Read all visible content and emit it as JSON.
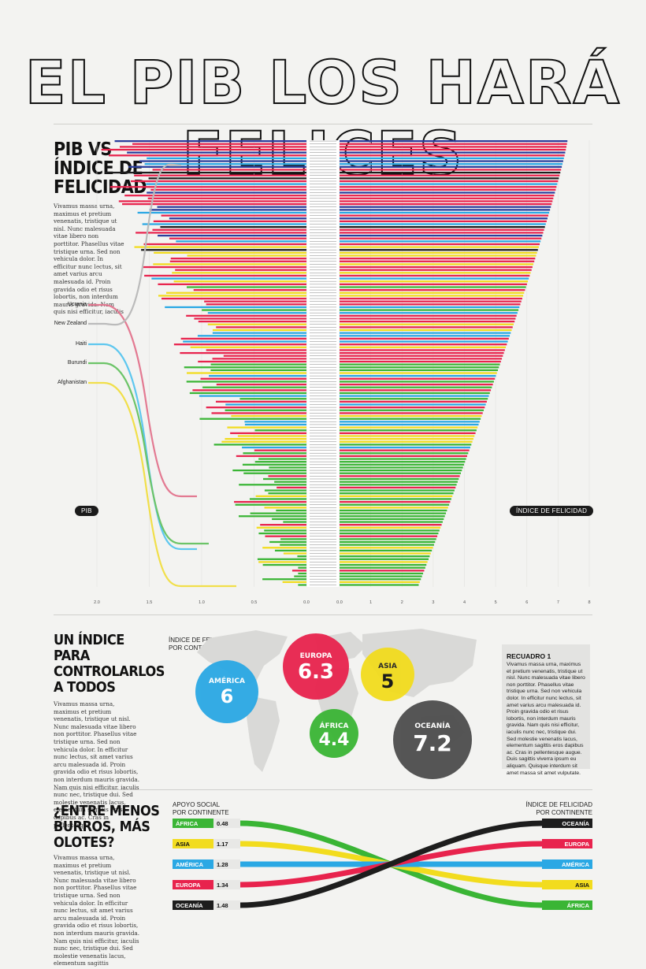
{
  "title": "EL PIB LOS HARÁ FELICES",
  "section1": {
    "heading": [
      "PIB VS",
      "ÍNDICE DE",
      "FELICIDAD"
    ],
    "body": "Vivamus massa urna, maximus et pretium venenatis, tristique ut nisl. Nunc malesuada vitae libero non porttitor. Phasellus vitae tristique urna. Sed non vehicula dolor. In efficitur nunc lectus, sit amet varius arcu malesuada id. Proin gravida odio et risus lobortis, non interdum mauris gravida. Nam quis nisi efficitur, iaculis",
    "callouts": [
      "Ucrania",
      "New Zealand",
      "Haiti",
      "Burundi",
      "Afghanistan"
    ],
    "pib_label": "PIB",
    "happiness_label": "ÍNDICE DE FELICIDAD"
  },
  "colors": {
    "europa": "#e8234d",
    "america": "#2aa8e4",
    "asia": "#f2dc1e",
    "africa": "#3ab535",
    "oceania": "#1d1d1d",
    "dark_blue": "#2a3d9c"
  },
  "chart_data": {
    "type": "bar",
    "left_axis_ticks": [
      "2.0",
      "1.5",
      "1.0",
      "0.5",
      "0.0"
    ],
    "right_axis_ticks": [
      "0.0",
      "1",
      "2",
      "3",
      "4",
      "5",
      "6",
      "7",
      "8"
    ],
    "left_xlim": [
      0,
      2.0
    ],
    "right_xlim": [
      0,
      8
    ],
    "n_countries": 156,
    "happiness_range": [
      2.5,
      7.3
    ]
  },
  "section2": {
    "heading": [
      "UN ÍNDICE",
      "PARA",
      "CONTROLARLOS",
      "A TODOS"
    ],
    "body": "Vivamus massa urna, maximus et pretium venenatis, tristique ut nisl. Nunc malesuada vitae libero non porttitor. Phasellus vitae tristique urna. Sed non vehicula dolor. In efficitur nunc lectus, sit amet varius arcu malesuada id. Proin gravida odio et risus lobortis, non interdum mauris gravida. Nam quis nisi efficitur, iaculis nunc nec, tristique dui. Sed molestie venenatis lacus, elementum sagittis eros dapibus ac. Cras in pellentesque",
    "map_label": [
      "ÍNDICE DE FELICIDAD",
      "POR CONTINENTE"
    ],
    "continents": [
      {
        "name": "AMÉRICA",
        "value": "6"
      },
      {
        "name": "EUROPA",
        "value": "6.3"
      },
      {
        "name": "ASIA",
        "value": "5"
      },
      {
        "name": "ÁFRICA",
        "value": "4.4"
      },
      {
        "name": "OCEANÍA",
        "value": "7.2"
      }
    ],
    "box_title": "RECUADRO 1",
    "box_text": "Vivamus massa urna, maximus et pretium venenatis, tristique ut nisl. Nunc malesuada vitae libero non porttitor. Phasellus vitae tristique urna. Sed non vehicula dolor. In efficitur nunc lectus, sit amet varius arcu malesuada id. Proin gravida odio et risus lobortis, non interdum mauris gravida. Nam quis nisi efficitur, iaculis nunc nec, tristique dui. Sed molestie venenatis lacus, elementum sagittis eros dapibus ac. Cras in pellentesque augue. Duis sagittis viverra ipsum eu aliquam. Quisque interdum sit amet massa sit amet vulputate."
  },
  "section3": {
    "heading": [
      "¿ENTRE MENOS",
      "BURROS, MÁS",
      "OLOTES?"
    ],
    "body": "Vivamus massa urna, maximus et pretium venenatis, tristique ut nisl. Nunc malesuada vitae libero non porttitor. Phasellus vitae tristique urna. Sed non vehicula dolor. In efficitur nunc lectus, sit amet varius arcu malesuada id. Proin gravida odio et risus lobortis, non interdum mauris gravida. Nam quis nisi efficitur, iaculis nunc nec, tristique dui. Sed molestie venenatis lacus, elementum sagittis",
    "left_label": [
      "APOYO SOCIAL",
      "POR CONTINENTE"
    ],
    "right_label": [
      "ÍNDICE DE FELICIDAD",
      "POR CONTINENTE"
    ],
    "left": [
      {
        "name": "ÁFRICA",
        "value": "0.48",
        "color": "#3ab535"
      },
      {
        "name": "ASIA",
        "value": "1.17",
        "color": "#f2dc1e"
      },
      {
        "name": "AMÉRICA",
        "value": "1.28",
        "color": "#2aa8e4"
      },
      {
        "name": "EUROPA",
        "value": "1.34",
        "color": "#e8234d"
      },
      {
        "name": "OCEANÍA",
        "value": "1.48",
        "color": "#1d1d1d"
      }
    ],
    "right": [
      {
        "name": "OCEANÍA",
        "color": "#1d1d1d"
      },
      {
        "name": "EUROPA",
        "color": "#e8234d"
      },
      {
        "name": "AMÉRICA",
        "color": "#2aa8e4"
      },
      {
        "name": "ASIA",
        "color": "#f2dc1e"
      },
      {
        "name": "ÁFRICA",
        "color": "#3ab535"
      }
    ]
  }
}
